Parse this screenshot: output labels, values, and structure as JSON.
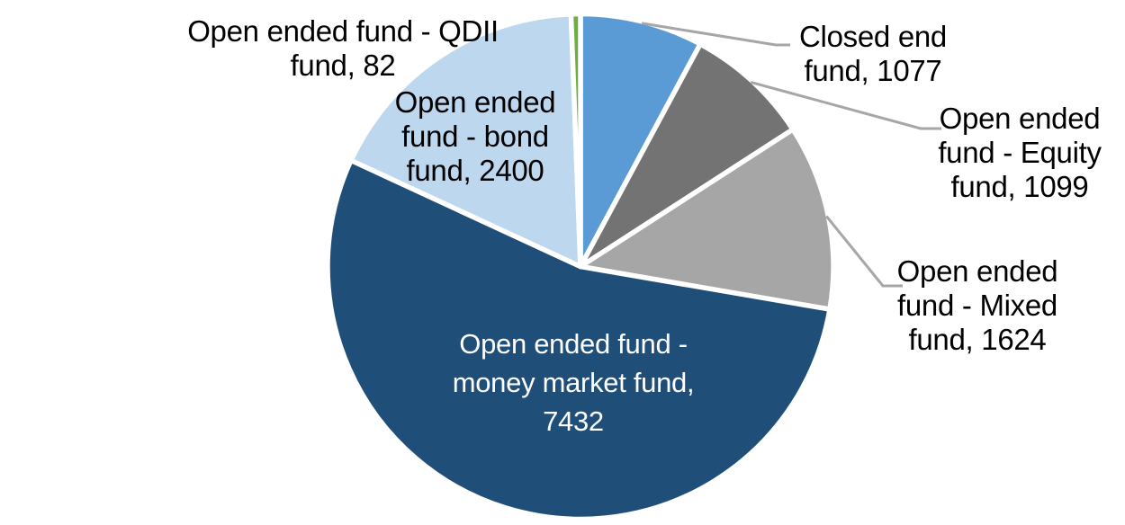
{
  "chart_data": {
    "type": "pie",
    "title": "",
    "legend": "none",
    "start_angle_deg": 0,
    "direction": "clockwise",
    "background_color": "#FFFFFF",
    "slice_border_color": "#FFFFFF",
    "leader_line_color": "#A6A6A6",
    "slices": [
      {
        "key": "closed-end-fund",
        "label": "Closed end fund",
        "value": 1077,
        "color": "#5B9BD5",
        "data_label": "Closed end fund, 1077",
        "label_lines": [
          "Closed end",
          "fund, 1077"
        ],
        "label_placement": "outside-right",
        "label_text_color": "#000000",
        "leader_line": true
      },
      {
        "key": "open-ended-equity-fund",
        "label": "Open ended fund - Equity fund",
        "value": 1099,
        "color": "#737373",
        "data_label": "Open ended fund - Equity fund, 1099",
        "label_lines": [
          "Open ended",
          "fund - Equity",
          "fund, 1099"
        ],
        "label_placement": "outside-right",
        "label_text_color": "#000000",
        "leader_line": true
      },
      {
        "key": "open-ended-mixed-fund",
        "label": "Open ended fund - Mixed fund",
        "value": 1624,
        "color": "#A6A6A6",
        "data_label": "Open ended fund - Mixed fund, 1624",
        "label_lines": [
          "Open ended",
          "fund - Mixed",
          "fund, 1624"
        ],
        "label_placement": "outside-right",
        "label_text_color": "#000000",
        "leader_line": true
      },
      {
        "key": "open-ended-money-market-fund",
        "label": "Open ended fund - money market fund",
        "value": 7432,
        "color": "#1F4E79",
        "data_label": "Open ended fund - money market fund, 7432",
        "label_lines": [
          "Open ended fund -",
          "money market fund,",
          "7432"
        ],
        "label_placement": "inside",
        "label_text_color": "#FFFFFF",
        "leader_line": false
      },
      {
        "key": "open-ended-bond-fund",
        "label": "Open ended fund - bond fund",
        "value": 2400,
        "color": "#BDD7EE",
        "data_label": "Open ended fund - bond fund, 2400",
        "label_lines": [
          "Open ended",
          "fund - bond",
          "fund, 2400"
        ],
        "label_placement": "inside-top-left",
        "label_text_color": "#000000",
        "leader_line": false
      },
      {
        "key": "open-ended-qdii-fund",
        "label": "Open ended fund - QDII fund",
        "value": 82,
        "color": "#70AD47",
        "data_label": "Open ended fund - QDII fund, 82",
        "label_lines": [
          "Open ended fund - QDII",
          "fund, 82"
        ],
        "label_placement": "outside-top-left",
        "label_text_color": "#000000",
        "leader_line": false
      }
    ]
  }
}
